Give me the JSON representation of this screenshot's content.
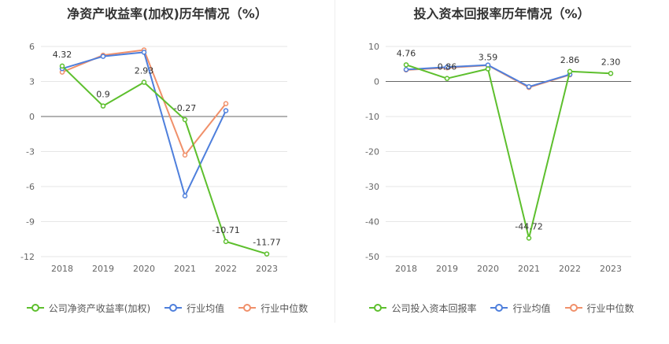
{
  "colors": {
    "company": "#5dbf2d",
    "avg": "#4e7fdc",
    "median": "#f0906a"
  },
  "chart_data": [
    {
      "type": "line",
      "title": "净资产收益率(加权)历年情况（%）",
      "categories": [
        "2018",
        "2019",
        "2020",
        "2021",
        "2022",
        "2023"
      ],
      "yticks": [
        6,
        3,
        0,
        -3,
        -6,
        -9,
        -12
      ],
      "ylim": [
        -12,
        6
      ],
      "series": [
        {
          "name": "公司净资产收益率(加权)",
          "color_key": "company",
          "values": [
            4.32,
            0.9,
            2.93,
            -0.27,
            -10.71,
            -11.77
          ],
          "labels": [
            "4.32",
            "0.9",
            "2.93",
            "-0.27",
            "-10.71",
            "-11.77"
          ]
        },
        {
          "name": "行业均值",
          "color_key": "avg",
          "values": [
            4.1,
            5.15,
            5.5,
            -6.8,
            0.5,
            null
          ]
        },
        {
          "name": "行业中位数",
          "color_key": "median",
          "values": [
            3.8,
            5.25,
            5.7,
            -3.3,
            1.1,
            null
          ]
        }
      ]
    },
    {
      "type": "line",
      "title": "投入资本回报率历年情况（%）",
      "categories": [
        "2018",
        "2019",
        "2020",
        "2021",
        "2022",
        "2023"
      ],
      "yticks": [
        10,
        0,
        -10,
        -20,
        -30,
        -40,
        -50
      ],
      "ylim": [
        -50,
        10
      ],
      "series": [
        {
          "name": "公司投入资本回报率",
          "color_key": "company",
          "values": [
            4.76,
            0.86,
            3.59,
            -44.72,
            2.86,
            2.3
          ],
          "labels": [
            "4.76",
            "0.86",
            "3.59",
            "-44.72",
            "2.86",
            "2.30"
          ]
        },
        {
          "name": "行业均值",
          "color_key": "avg",
          "values": [
            3.4,
            4.1,
            4.7,
            -1.5,
            2.0,
            null
          ]
        },
        {
          "name": "行业中位数",
          "color_key": "median",
          "values": [
            3.3,
            3.9,
            4.6,
            -1.7,
            1.9,
            null
          ]
        }
      ]
    }
  ]
}
